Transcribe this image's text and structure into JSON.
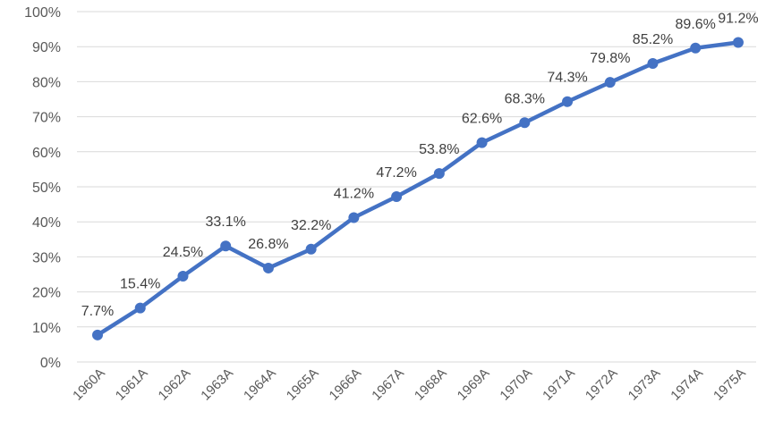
{
  "chart_data": {
    "type": "line",
    "title": "",
    "xlabel": "",
    "ylabel": "",
    "categories": [
      "1960A",
      "1961A",
      "1962A",
      "1963A",
      "1964A",
      "1965A",
      "1966A",
      "1967A",
      "1968A",
      "1969A",
      "1970A",
      "1971A",
      "1972A",
      "1973A",
      "1974A",
      "1975A"
    ],
    "series": [
      {
        "values": [
          7.7,
          15.4,
          24.5,
          33.1,
          26.8,
          32.2,
          41.2,
          47.2,
          53.8,
          62.6,
          68.3,
          74.3,
          79.8,
          85.2,
          89.6,
          91.2
        ],
        "labels": [
          "7.7%",
          "15.4%",
          "24.5%",
          "33.1%",
          "26.8%",
          "32.2%",
          "41.2%",
          "47.2%",
          "53.8%",
          "62.6%",
          "68.3%",
          "74.3%",
          "79.8%",
          "85.2%",
          "89.6%",
          "91.2%"
        ],
        "color": "#4472c4"
      }
    ],
    "yticks": [
      "0%",
      "10%",
      "20%",
      "30%",
      "40%",
      "50%",
      "60%",
      "70%",
      "80%",
      "90%",
      "100%"
    ],
    "ylim": [
      0,
      100
    ],
    "grid": true,
    "legend": "none"
  }
}
